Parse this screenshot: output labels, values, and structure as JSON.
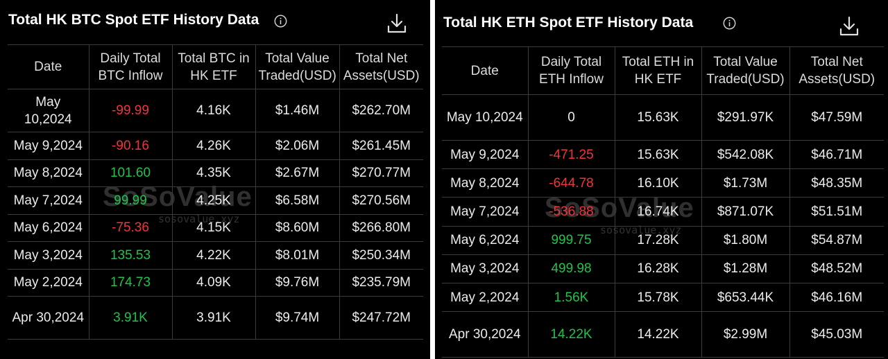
{
  "btc": {
    "title": "Total HK BTC Spot ETF History Data",
    "info_icon": "info-icon",
    "download_icon": "download-icon",
    "headers": [
      "Date",
      "Daily Total BTC Inflow",
      "Total BTC in HK ETF",
      "Total Value Traded(USD)",
      "Total Net Assets(USD)"
    ],
    "rows": [
      {
        "date": "May 10,2024",
        "inflow": "-99.99",
        "holdings": "4.16K",
        "traded": "$1.46M",
        "assets": "$262.70M"
      },
      {
        "date": "May 9,2024",
        "inflow": "-90.16",
        "holdings": "4.26K",
        "traded": "$2.06M",
        "assets": "$261.45M"
      },
      {
        "date": "May 8,2024",
        "inflow": "101.60",
        "holdings": "4.35K",
        "traded": "$2.67M",
        "assets": "$270.77M"
      },
      {
        "date": "May 7,2024",
        "inflow": "99.99",
        "holdings": "4.25K",
        "traded": "$6.58M",
        "assets": "$270.56M"
      },
      {
        "date": "May 6,2024",
        "inflow": "-75.36",
        "holdings": "4.15K",
        "traded": "$8.60M",
        "assets": "$266.80M"
      },
      {
        "date": "May 3,2024",
        "inflow": "135.53",
        "holdings": "4.22K",
        "traded": "$8.01M",
        "assets": "$250.34M"
      },
      {
        "date": "May 2,2024",
        "inflow": "174.73",
        "holdings": "4.09K",
        "traded": "$9.76M",
        "assets": "$235.79M"
      },
      {
        "date": "Apr 30,2024",
        "inflow": "3.91K",
        "holdings": "3.91K",
        "traded": "$9.74M",
        "assets": "$247.72M"
      }
    ],
    "watermark": {
      "logo": "SoSoValue",
      "url": "sosovalue.xyz"
    }
  },
  "eth": {
    "title": "Total HK ETH Spot ETF History Data",
    "info_icon": "info-icon",
    "download_icon": "download-icon",
    "headers": [
      "Date",
      "Daily Total ETH Inflow",
      "Total ETH in HK ETF",
      "Total Value Traded(USD)",
      "Total Net Assets(USD)"
    ],
    "rows": [
      {
        "date": "May 10,2024",
        "inflow": "0",
        "holdings": "15.63K",
        "traded": "$291.97K",
        "assets": "$47.59M"
      },
      {
        "date": "May 9,2024",
        "inflow": "-471.25",
        "holdings": "15.63K",
        "traded": "$542.08K",
        "assets": "$46.71M"
      },
      {
        "date": "May 8,2024",
        "inflow": "-644.78",
        "holdings": "16.10K",
        "traded": "$1.73M",
        "assets": "$48.35M"
      },
      {
        "date": "May 7,2024",
        "inflow": "-536.88",
        "holdings": "16.74K",
        "traded": "$871.07K",
        "assets": "$51.51M"
      },
      {
        "date": "May 6,2024",
        "inflow": "999.75",
        "holdings": "17.28K",
        "traded": "$1.80M",
        "assets": "$54.87M"
      },
      {
        "date": "May 3,2024",
        "inflow": "499.98",
        "holdings": "16.28K",
        "traded": "$1.28M",
        "assets": "$48.52M"
      },
      {
        "date": "May 2,2024",
        "inflow": "1.56K",
        "holdings": "15.78K",
        "traded": "$653.44K",
        "assets": "$46.16M"
      },
      {
        "date": "Apr 30,2024",
        "inflow": "14.22K",
        "holdings": "14.22K",
        "traded": "$2.99M",
        "assets": "$45.03M"
      }
    ],
    "watermark": {
      "logo": "SoSoValue",
      "url": "sosovalue.xyz"
    }
  },
  "colors": {
    "positive": "#1fc44a",
    "negative": "#f0343c",
    "neutral": "#ececec",
    "background": "#000000",
    "grid": "#3c3c3c"
  }
}
